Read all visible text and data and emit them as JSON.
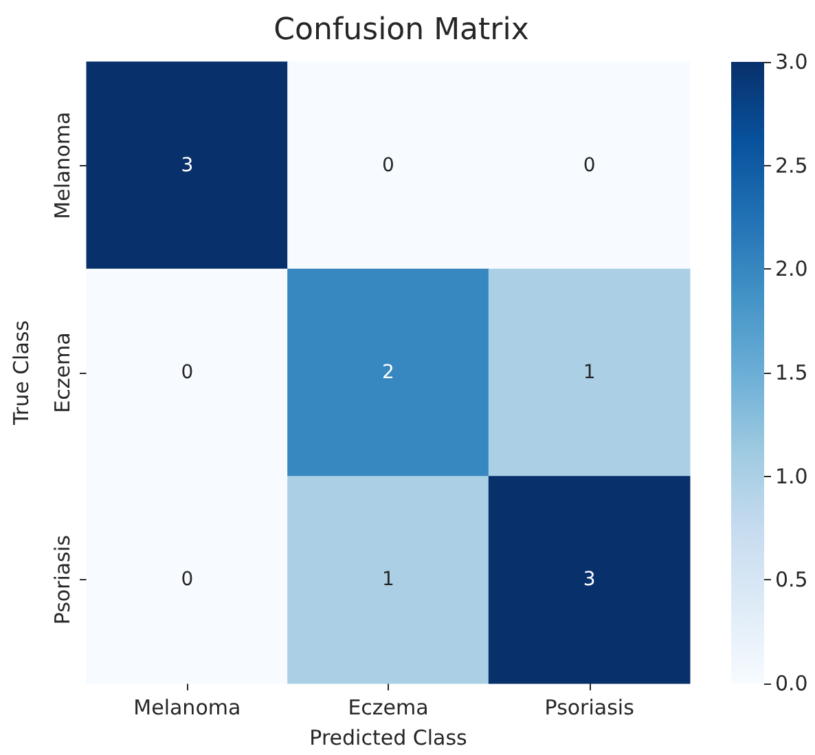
{
  "chart_data": {
    "type": "heatmap",
    "title": "Confusion Matrix",
    "xlabel": "Predicted Class",
    "ylabel": "True Class",
    "categories": [
      "Melanoma",
      "Eczema",
      "Psoriasis"
    ],
    "y_categories": [
      "Melanoma",
      "Eczema",
      "Psoriasis"
    ],
    "cells": [
      [
        3,
        0,
        0
      ],
      [
        0,
        2,
        1
      ],
      [
        0,
        1,
        3
      ]
    ],
    "data_labels": true,
    "clim": [
      0,
      3
    ],
    "cticks": [
      {
        "value": 0,
        "label": "0.0"
      },
      {
        "value": 0.5,
        "label": "0.5"
      },
      {
        "value": 1,
        "label": "1.0"
      },
      {
        "value": 1.5,
        "label": "1.5"
      },
      {
        "value": 2,
        "label": "2.0"
      },
      {
        "value": 2.5,
        "label": "2.5"
      },
      {
        "value": 3,
        "label": "3.0"
      }
    ]
  }
}
